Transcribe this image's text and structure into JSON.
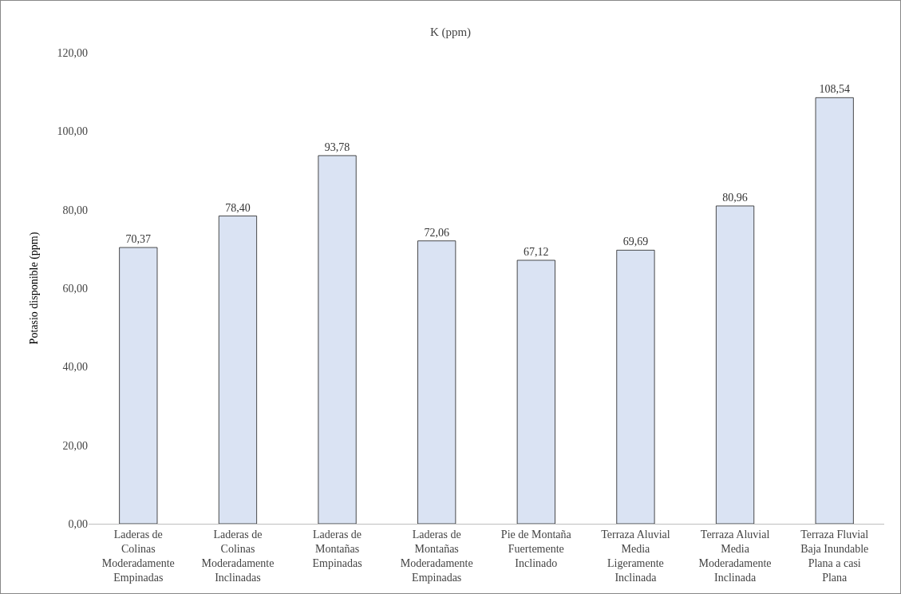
{
  "chart_data": {
    "type": "bar",
    "title": "K (ppm)",
    "ylabel": "Potasio disponible (ppm)",
    "categories": [
      "Laderas de Colinas Moderadamente Empinadas",
      "Laderas de Colinas Moderadamente Inclinadas",
      "Laderas de Montañas Empinadas",
      "Laderas de Montañas Moderadamente Empinadas",
      "Pie de Montaña Fuertemente Inclinado",
      "Terraza Aluvial Media Ligeramente Inclinada",
      "Terraza Aluvial Media Moderadamente Inclinada",
      "Terraza Fluvial Baja Inundable Plana a casi Plana"
    ],
    "values": [
      70.37,
      78.4,
      93.78,
      72.06,
      67.12,
      69.69,
      80.96,
      108.54
    ],
    "value_labels": [
      "70,37",
      "78,40",
      "93,78",
      "72,06",
      "67,12",
      "69,69",
      "80,96",
      "108,54"
    ],
    "color": "#dae3f3",
    "ylim": [
      0,
      120
    ],
    "yticks": [
      {
        "value": 0,
        "label": "0,00"
      },
      {
        "value": 20,
        "label": "20,00"
      },
      {
        "value": 40,
        "label": "40,00"
      },
      {
        "value": 60,
        "label": "60,00"
      },
      {
        "value": 80,
        "label": "80,00"
      },
      {
        "value": 100,
        "label": "100,00"
      },
      {
        "value": 120,
        "label": "120,00"
      }
    ],
    "grid": false
  }
}
